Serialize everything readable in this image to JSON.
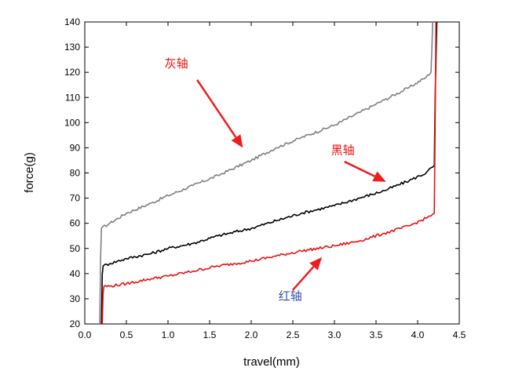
{
  "chart_data": {
    "type": "line",
    "xlabel": "travel(mm)",
    "ylabel": "force(g)",
    "xlim": [
      0.0,
      4.5
    ],
    "ylim": [
      20,
      140
    ],
    "xticks": [
      "0.0",
      "0.5",
      "1.0",
      "1.5",
      "2.0",
      "2.5",
      "3.0",
      "3.5",
      "4.0",
      "4.5"
    ],
    "yticks": [
      "20",
      "30",
      "40",
      "50",
      "60",
      "70",
      "80",
      "90",
      "100",
      "110",
      "120",
      "130",
      "140"
    ],
    "grid": false,
    "legend": "none",
    "series": [
      {
        "key": "gray",
        "color": "#808080",
        "x": [
          0.18,
          0.19,
          0.2,
          0.3,
          0.5,
          0.8,
          1.0,
          1.3,
          1.6,
          2.0,
          2.3,
          2.6,
          3.0,
          3.3,
          3.6,
          3.9,
          4.1,
          4.16,
          4.17,
          4.18
        ],
        "values": [
          20,
          46,
          58,
          60,
          64,
          68,
          71,
          75,
          79,
          85,
          90,
          94,
          99,
          104,
          109,
          114,
          118,
          120,
          128,
          140
        ]
      },
      {
        "key": "black",
        "color": "#000000",
        "x": [
          0.2,
          0.21,
          0.22,
          0.3,
          0.5,
          0.8,
          1.0,
          1.3,
          1.6,
          2.0,
          2.3,
          2.6,
          3.0,
          3.3,
          3.6,
          3.9,
          4.1,
          4.2,
          4.21,
          4.23
        ],
        "values": [
          20,
          40,
          43,
          44,
          46,
          48,
          50,
          52,
          55,
          58,
          61,
          64,
          67,
          70,
          73,
          77,
          80,
          83,
          110,
          140
        ]
      },
      {
        "key": "red",
        "color": "#e8120f",
        "x": [
          0.21,
          0.22,
          0.23,
          0.3,
          0.5,
          0.8,
          1.0,
          1.3,
          1.6,
          2.0,
          2.3,
          2.6,
          3.0,
          3.3,
          3.6,
          3.9,
          4.1,
          4.2,
          4.21,
          4.22
        ],
        "values": [
          20,
          32,
          35,
          35,
          36,
          38,
          39,
          41,
          43,
          45,
          47,
          49,
          51,
          53,
          56,
          59,
          62,
          64,
          100,
          140
        ]
      }
    ],
    "annotations": [
      {
        "text": "灰轴",
        "color": "#e8120f",
        "x": 1.1,
        "y": 122,
        "tip_x": 1.9,
        "tip_y": 90,
        "arrow_from_x": 1.35,
        "arrow_from_y": 117
      },
      {
        "text": "黑轴",
        "color": "#e8120f",
        "x": 3.1,
        "y": 87.5,
        "tip_x": 3.62,
        "tip_y": 76.5,
        "arrow_from_x": 3.12,
        "arrow_from_y": 84.5
      },
      {
        "text": "红轴",
        "color": "#3a4fb0",
        "x": 2.47,
        "y": 29.5,
        "tip_x": 2.85,
        "tip_y": 46.5,
        "arrow_from_x": 2.5,
        "arrow_from_y": 33.5
      }
    ]
  }
}
